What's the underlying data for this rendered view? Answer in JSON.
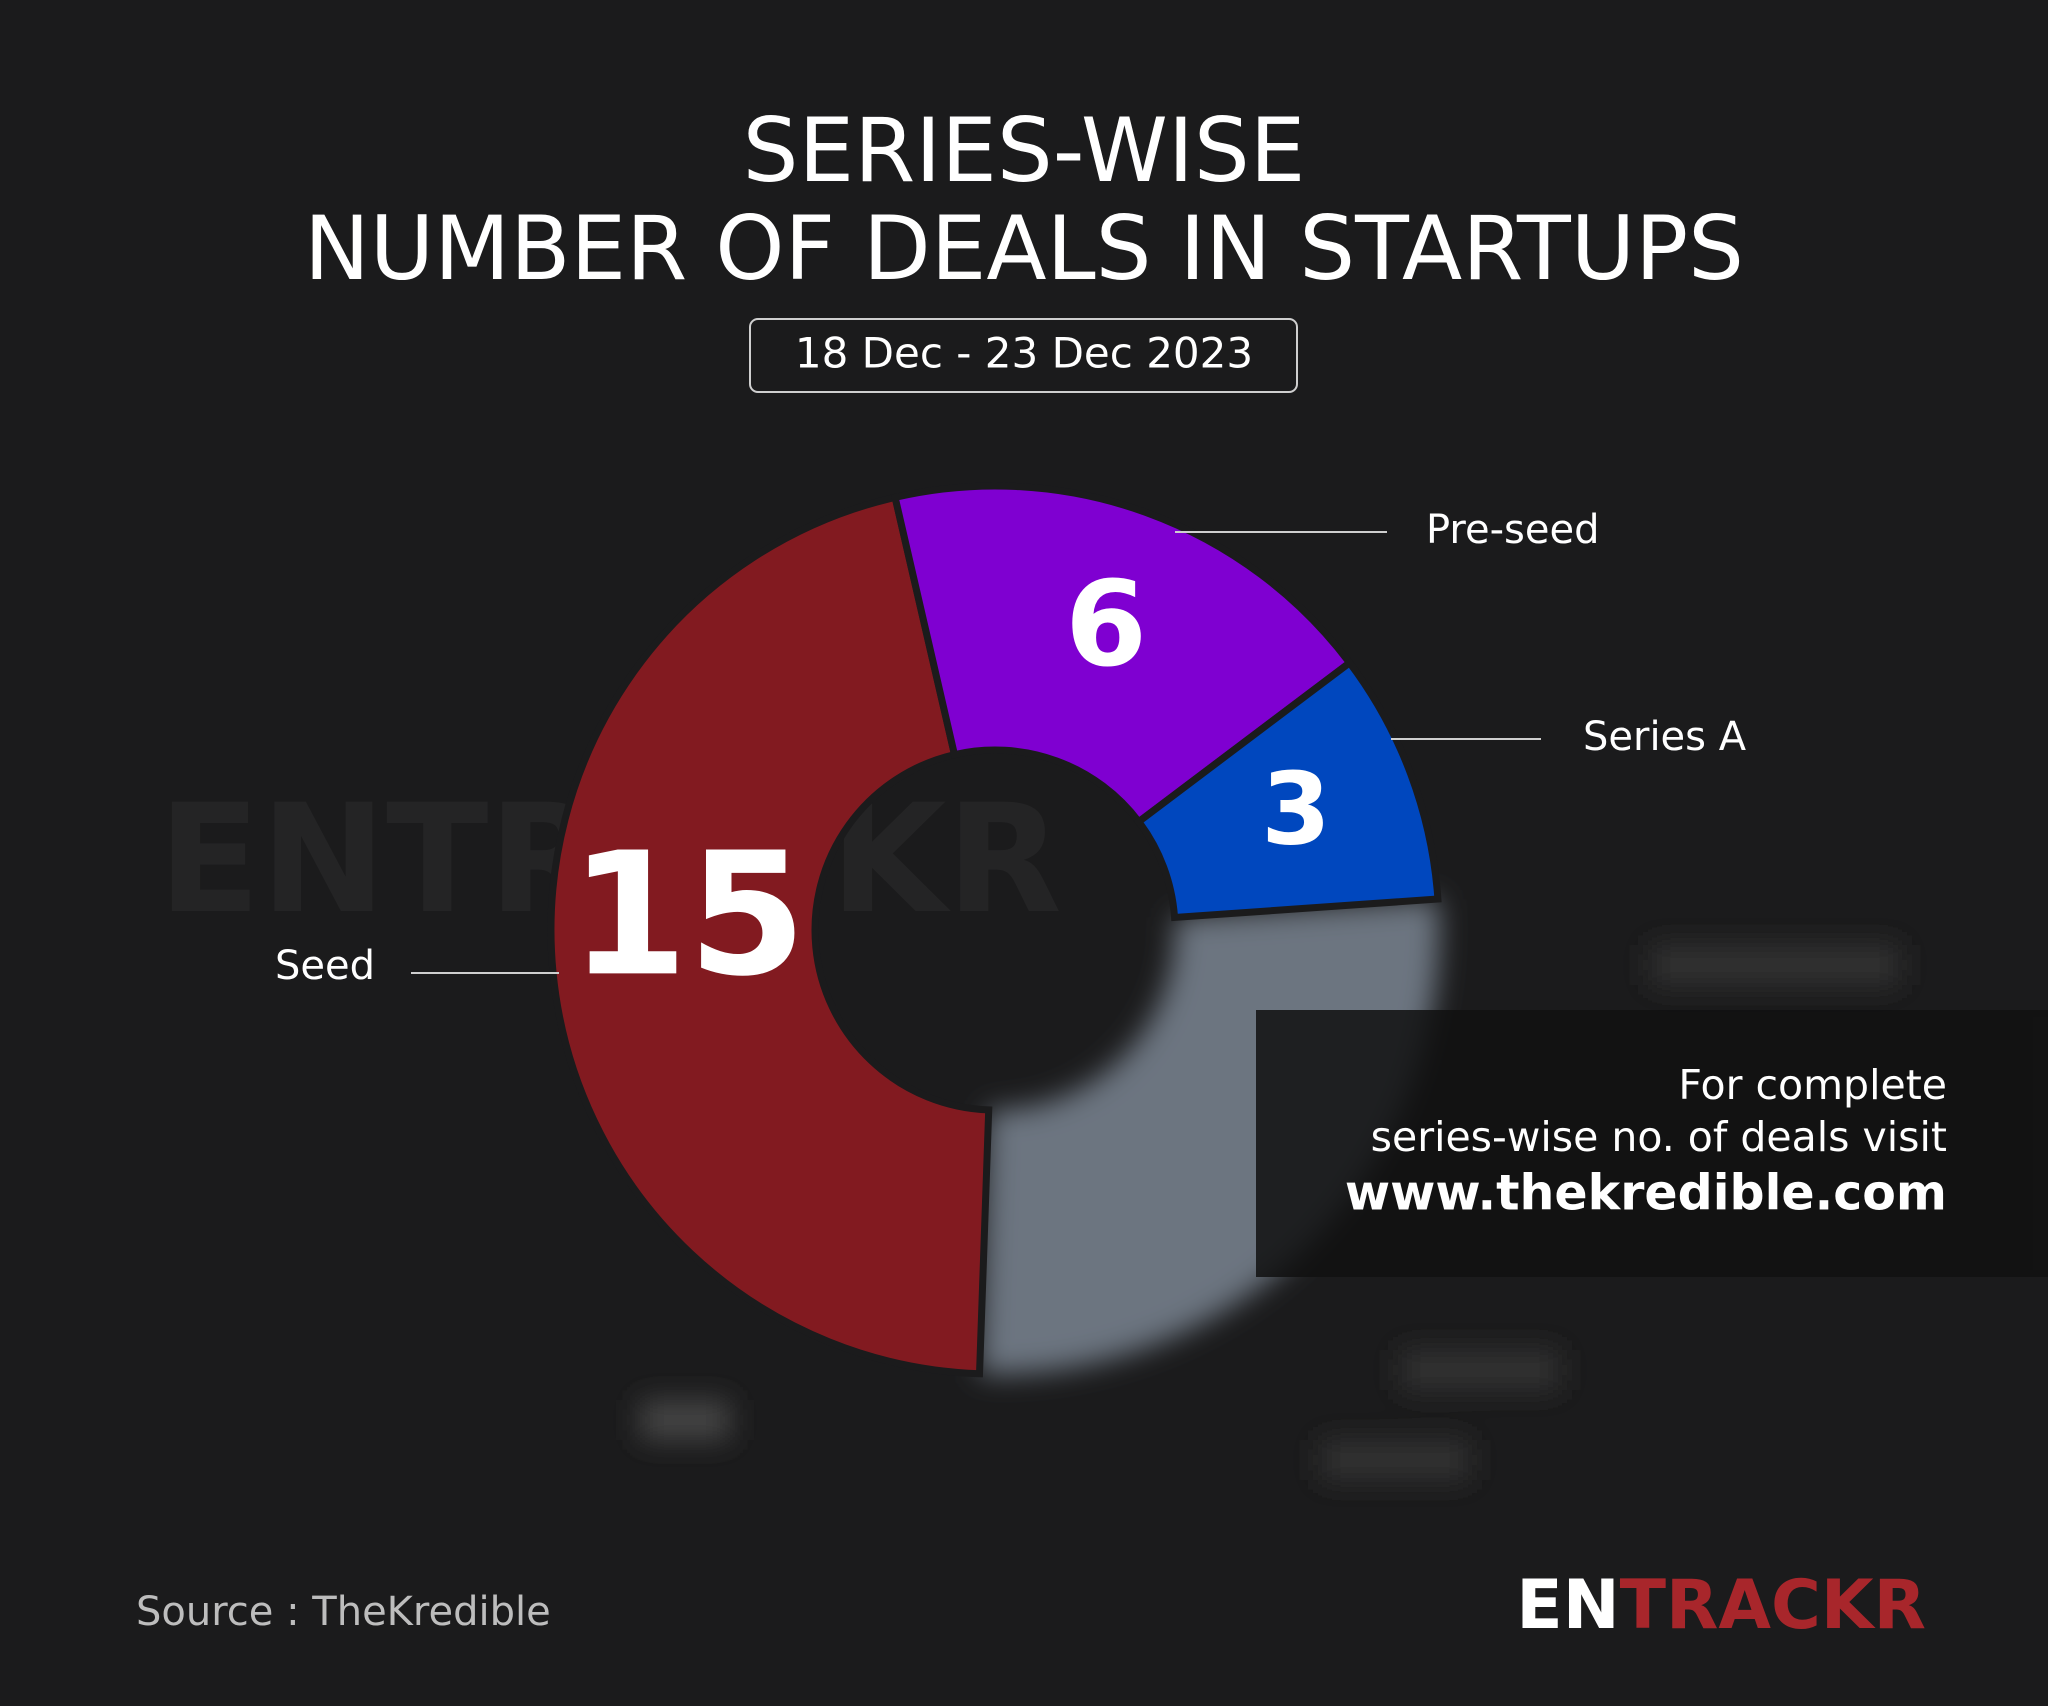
{
  "chart_data": {
    "type": "donut",
    "title_lines": [
      "SERIES-WISE",
      "NUMBER OF DEALS IN STARTUPS"
    ],
    "subtitle": "18 Dec - 23 Dec 2023",
    "categories": [
      "Seed",
      "Pre-seed",
      "Series A"
    ],
    "values": [
      15,
      6,
      3
    ],
    "colors": [
      "#821a20",
      "#7f00d1",
      "#0047be"
    ],
    "note_lines": [
      "For complete",
      "series-wise no. of deals visit",
      "www.thekredible.com"
    ],
    "source": "Source : TheKredible",
    "logo_parts": [
      "EN",
      "TRACKR"
    ],
    "watermark": "ENTRACKR"
  }
}
